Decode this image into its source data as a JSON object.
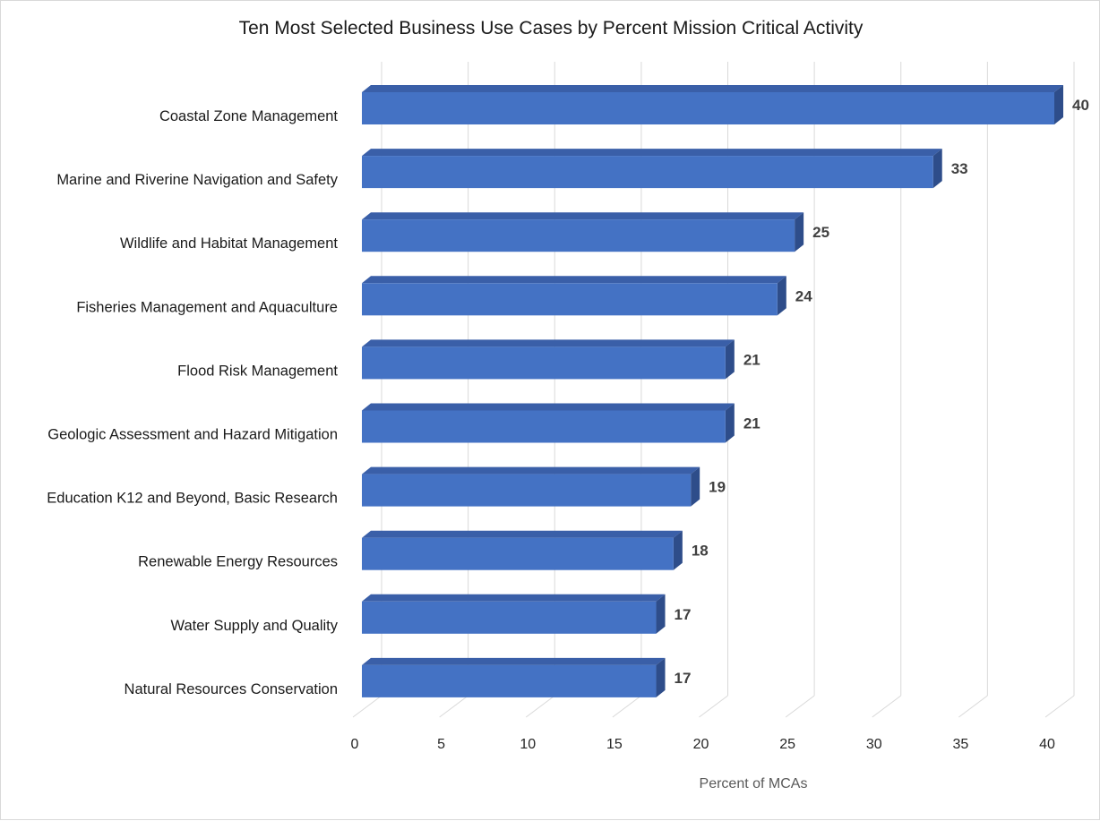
{
  "chart_data": {
    "type": "bar",
    "orientation": "horizontal",
    "title": "Ten Most Selected Business Use Cases by Percent Mission Critical Activity",
    "xlabel": "Percent of MCAs",
    "ylabel": "",
    "categories": [
      "Coastal Zone Management",
      "Marine and Riverine Navigation and Safety",
      "Wildlife and Habitat Management",
      "Fisheries Management and Aquaculture",
      "Flood Risk Management",
      "Geologic Assessment and Hazard Mitigation",
      "Education K12 and Beyond, Basic Research",
      "Renewable Energy Resources",
      "Water Supply and Quality",
      "Natural Resources Conservation"
    ],
    "values": [
      40,
      33,
      25,
      24,
      21,
      21,
      19,
      18,
      17,
      17
    ],
    "xlim": [
      0,
      40
    ],
    "xticks": [
      0,
      5,
      10,
      15,
      20,
      25,
      30,
      35,
      40
    ],
    "data_labels": true,
    "grid": true,
    "legend": "none",
    "style": "3d-bar",
    "colors": {
      "bar_front": "#4472C4",
      "bar_top": "#3A5FA8",
      "bar_side": "#2E4D8A",
      "gridline": "#d9d9d9"
    }
  }
}
